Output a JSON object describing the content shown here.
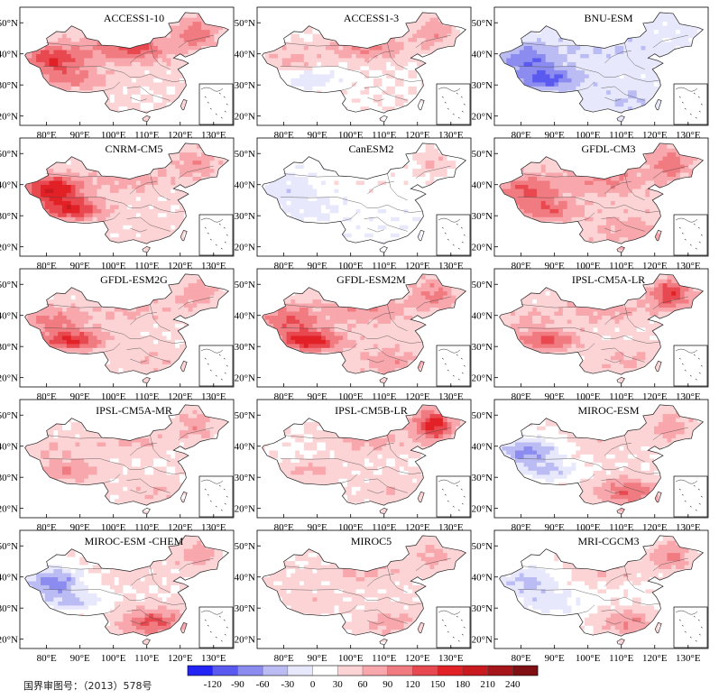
{
  "chart_data": {
    "type": "heatmap",
    "description_units": "anomaly",
    "panels": [
      {
        "title": "ACCESS1-10",
        "pattern": {
          "base": 40,
          "west": 110,
          "north": 90,
          "northeast": 70,
          "south": -10,
          "tibet": 60
        }
      },
      {
        "title": "ACCESS1-3",
        "pattern": {
          "base": 25,
          "west": 40,
          "north": 70,
          "northeast": 60,
          "south": 5,
          "tibet": -50
        }
      },
      {
        "title": "BNU-ESM",
        "pattern": {
          "base": -10,
          "west": -80,
          "north": -20,
          "northeast": 0,
          "south": -20,
          "tibet": -90
        }
      },
      {
        "title": "CNRM-CM5",
        "pattern": {
          "base": 35,
          "west": 150,
          "north": 40,
          "northeast": 50,
          "south": 10,
          "tibet": 120
        }
      },
      {
        "title": "CanESM2",
        "pattern": {
          "base": 10,
          "west": -30,
          "north": 20,
          "northeast": 50,
          "south": -5,
          "tibet": -20
        }
      },
      {
        "title": "GFDL-CM3",
        "pattern": {
          "base": 45,
          "west": 80,
          "north": 50,
          "northeast": 60,
          "south": 30,
          "tibet": 70
        }
      },
      {
        "title": "GFDL-ESM2G",
        "pattern": {
          "base": 35,
          "west": 70,
          "north": 30,
          "northeast": 45,
          "south": 25,
          "tibet": 120
        }
      },
      {
        "title": "GFDL-ESM2M",
        "pattern": {
          "base": 40,
          "west": 80,
          "north": 50,
          "northeast": 60,
          "south": 40,
          "tibet": 130
        }
      },
      {
        "title": "IPSL-CM5A-LR",
        "pattern": {
          "base": 35,
          "west": 30,
          "north": 40,
          "northeast": 110,
          "south": 30,
          "tibet": 90
        }
      },
      {
        "title": "IPSL-CM5A-MR",
        "pattern": {
          "base": 30,
          "west": 30,
          "north": 35,
          "northeast": 50,
          "south": 30,
          "tibet": 60
        }
      },
      {
        "title": "IPSL-CM5B-LR",
        "pattern": {
          "base": 30,
          "west": -10,
          "north": 40,
          "northeast": 140,
          "south": 25,
          "tibet": 40
        }
      },
      {
        "title": "MIROC-ESM",
        "pattern": {
          "base": 30,
          "west": -100,
          "north": 20,
          "northeast": 50,
          "south": 90,
          "tibet": -60
        }
      },
      {
        "title": "MIROC-ESM -CHEM",
        "pattern": {
          "base": 30,
          "west": -110,
          "north": 15,
          "northeast": 50,
          "south": 100,
          "tibet": -60
        }
      },
      {
        "title": "MIROC5",
        "pattern": {
          "base": 30,
          "west": 10,
          "north": 35,
          "northeast": 40,
          "south": 45,
          "tibet": 20
        }
      },
      {
        "title": "MRI-CGCM3",
        "pattern": {
          "base": 20,
          "west": -60,
          "north": 40,
          "northeast": 80,
          "south": 70,
          "tibet": -40
        }
      }
    ],
    "x_ticks": [
      "80°E",
      "90°E",
      "100°E",
      "110°E",
      "120°E",
      "130°E"
    ],
    "y_ticks": [
      "20°N",
      "30°N",
      "40°N",
      "50°N"
    ],
    "lon_range": [
      72,
      136
    ],
    "lat_range": [
      17,
      55
    ],
    "colorbar": {
      "ticks": [
        "-120",
        "-90",
        "-60",
        "-30",
        "0",
        "30",
        "60",
        "90",
        "120",
        "150",
        "180",
        "210",
        "240"
      ],
      "bins": [
        -135,
        -120,
        -90,
        -60,
        -30,
        0,
        30,
        60,
        90,
        120,
        150,
        180,
        210,
        240,
        255
      ],
      "colors": [
        "#2323f5",
        "#5a5af0",
        "#8c8cf0",
        "#bcbcf5",
        "#e8e8fc",
        "#ffffff",
        "#fcd4d6",
        "#f8a7ac",
        "#f07b81",
        "#e8484f",
        "#e22127",
        "#c81a1f",
        "#a5151a",
        "#7f0f12"
      ]
    }
  },
  "caption": "国界审图号：（2013）578号"
}
